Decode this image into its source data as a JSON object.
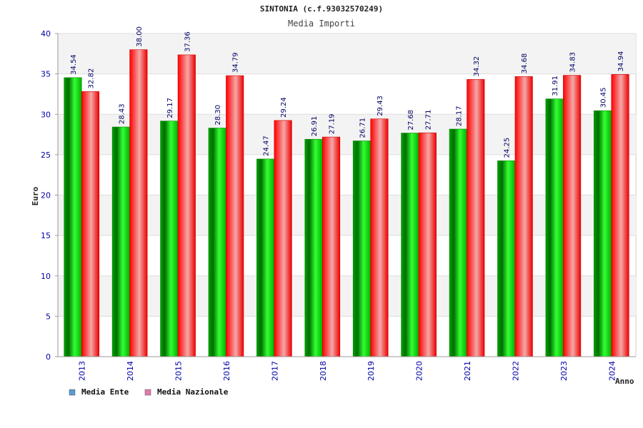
{
  "chart_data": {
    "type": "bar",
    "title": "SINTONIA (c.f.93032570249)",
    "subtitle": "Media Importi",
    "xlabel": "Anno",
    "ylabel": "Euro",
    "ylim": [
      0,
      40
    ],
    "yticks": [
      0,
      5,
      10,
      15,
      20,
      25,
      30,
      35,
      40
    ],
    "categories": [
      "2013",
      "2014",
      "2015",
      "2016",
      "2017",
      "2018",
      "2019",
      "2020",
      "2021",
      "2022",
      "2023",
      "2024"
    ],
    "series": [
      {
        "name": "Media Ente",
        "color": "#00aa00",
        "values": [
          34.54,
          28.43,
          29.17,
          28.3,
          24.47,
          26.91,
          26.71,
          27.68,
          28.17,
          24.25,
          31.91,
          30.45
        ],
        "labels": [
          "34.54",
          "28.43",
          "29.17",
          "28.30",
          "24.47",
          "26.91",
          "26.71",
          "27.68",
          "28.17",
          "24.25",
          "31.91",
          "30.45"
        ]
      },
      {
        "name": "Media Nazionale",
        "color": "#ee0000",
        "values": [
          32.82,
          38.0,
          37.36,
          34.79,
          29.24,
          27.19,
          29.43,
          27.71,
          34.32,
          34.68,
          34.83,
          34.94
        ],
        "labels": [
          "32.82",
          "38.00",
          "37.36",
          "34.79",
          "29.24",
          "27.19",
          "29.43",
          "27.71",
          "34.32",
          "34.68",
          "34.83",
          "34.94"
        ]
      }
    ],
    "legend": [
      {
        "label": "Media Ente",
        "color": "#5b9bd5"
      },
      {
        "label": "Media Nazionale",
        "color": "#e07ba8"
      }
    ],
    "legend_position": "bottom-left",
    "grid": true
  }
}
